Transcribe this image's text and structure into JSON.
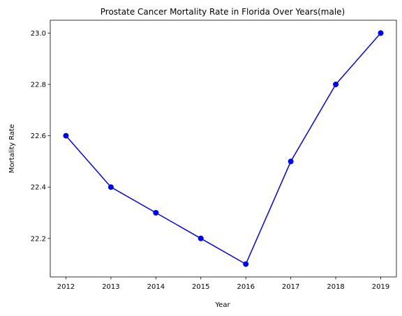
{
  "chart_data": {
    "type": "line",
    "title": "Prostate Cancer Mortality Rate in Florida Over Years(male)",
    "xlabel": "Year",
    "ylabel": "Mortality Rate",
    "categories": [
      "2012",
      "2013",
      "2014",
      "2015",
      "2016",
      "2017",
      "2018",
      "2019"
    ],
    "series": [
      {
        "values": [
          22.6,
          22.4,
          22.3,
          22.2,
          22.1,
          22.5,
          22.8,
          23.0
        ],
        "color": "#0000ff"
      }
    ],
    "ylim": [
      22.05,
      23.05
    ],
    "yticks": [
      "22.2",
      "22.4",
      "22.6",
      "22.8",
      "23.0"
    ],
    "grid": false,
    "legend": "none"
  }
}
